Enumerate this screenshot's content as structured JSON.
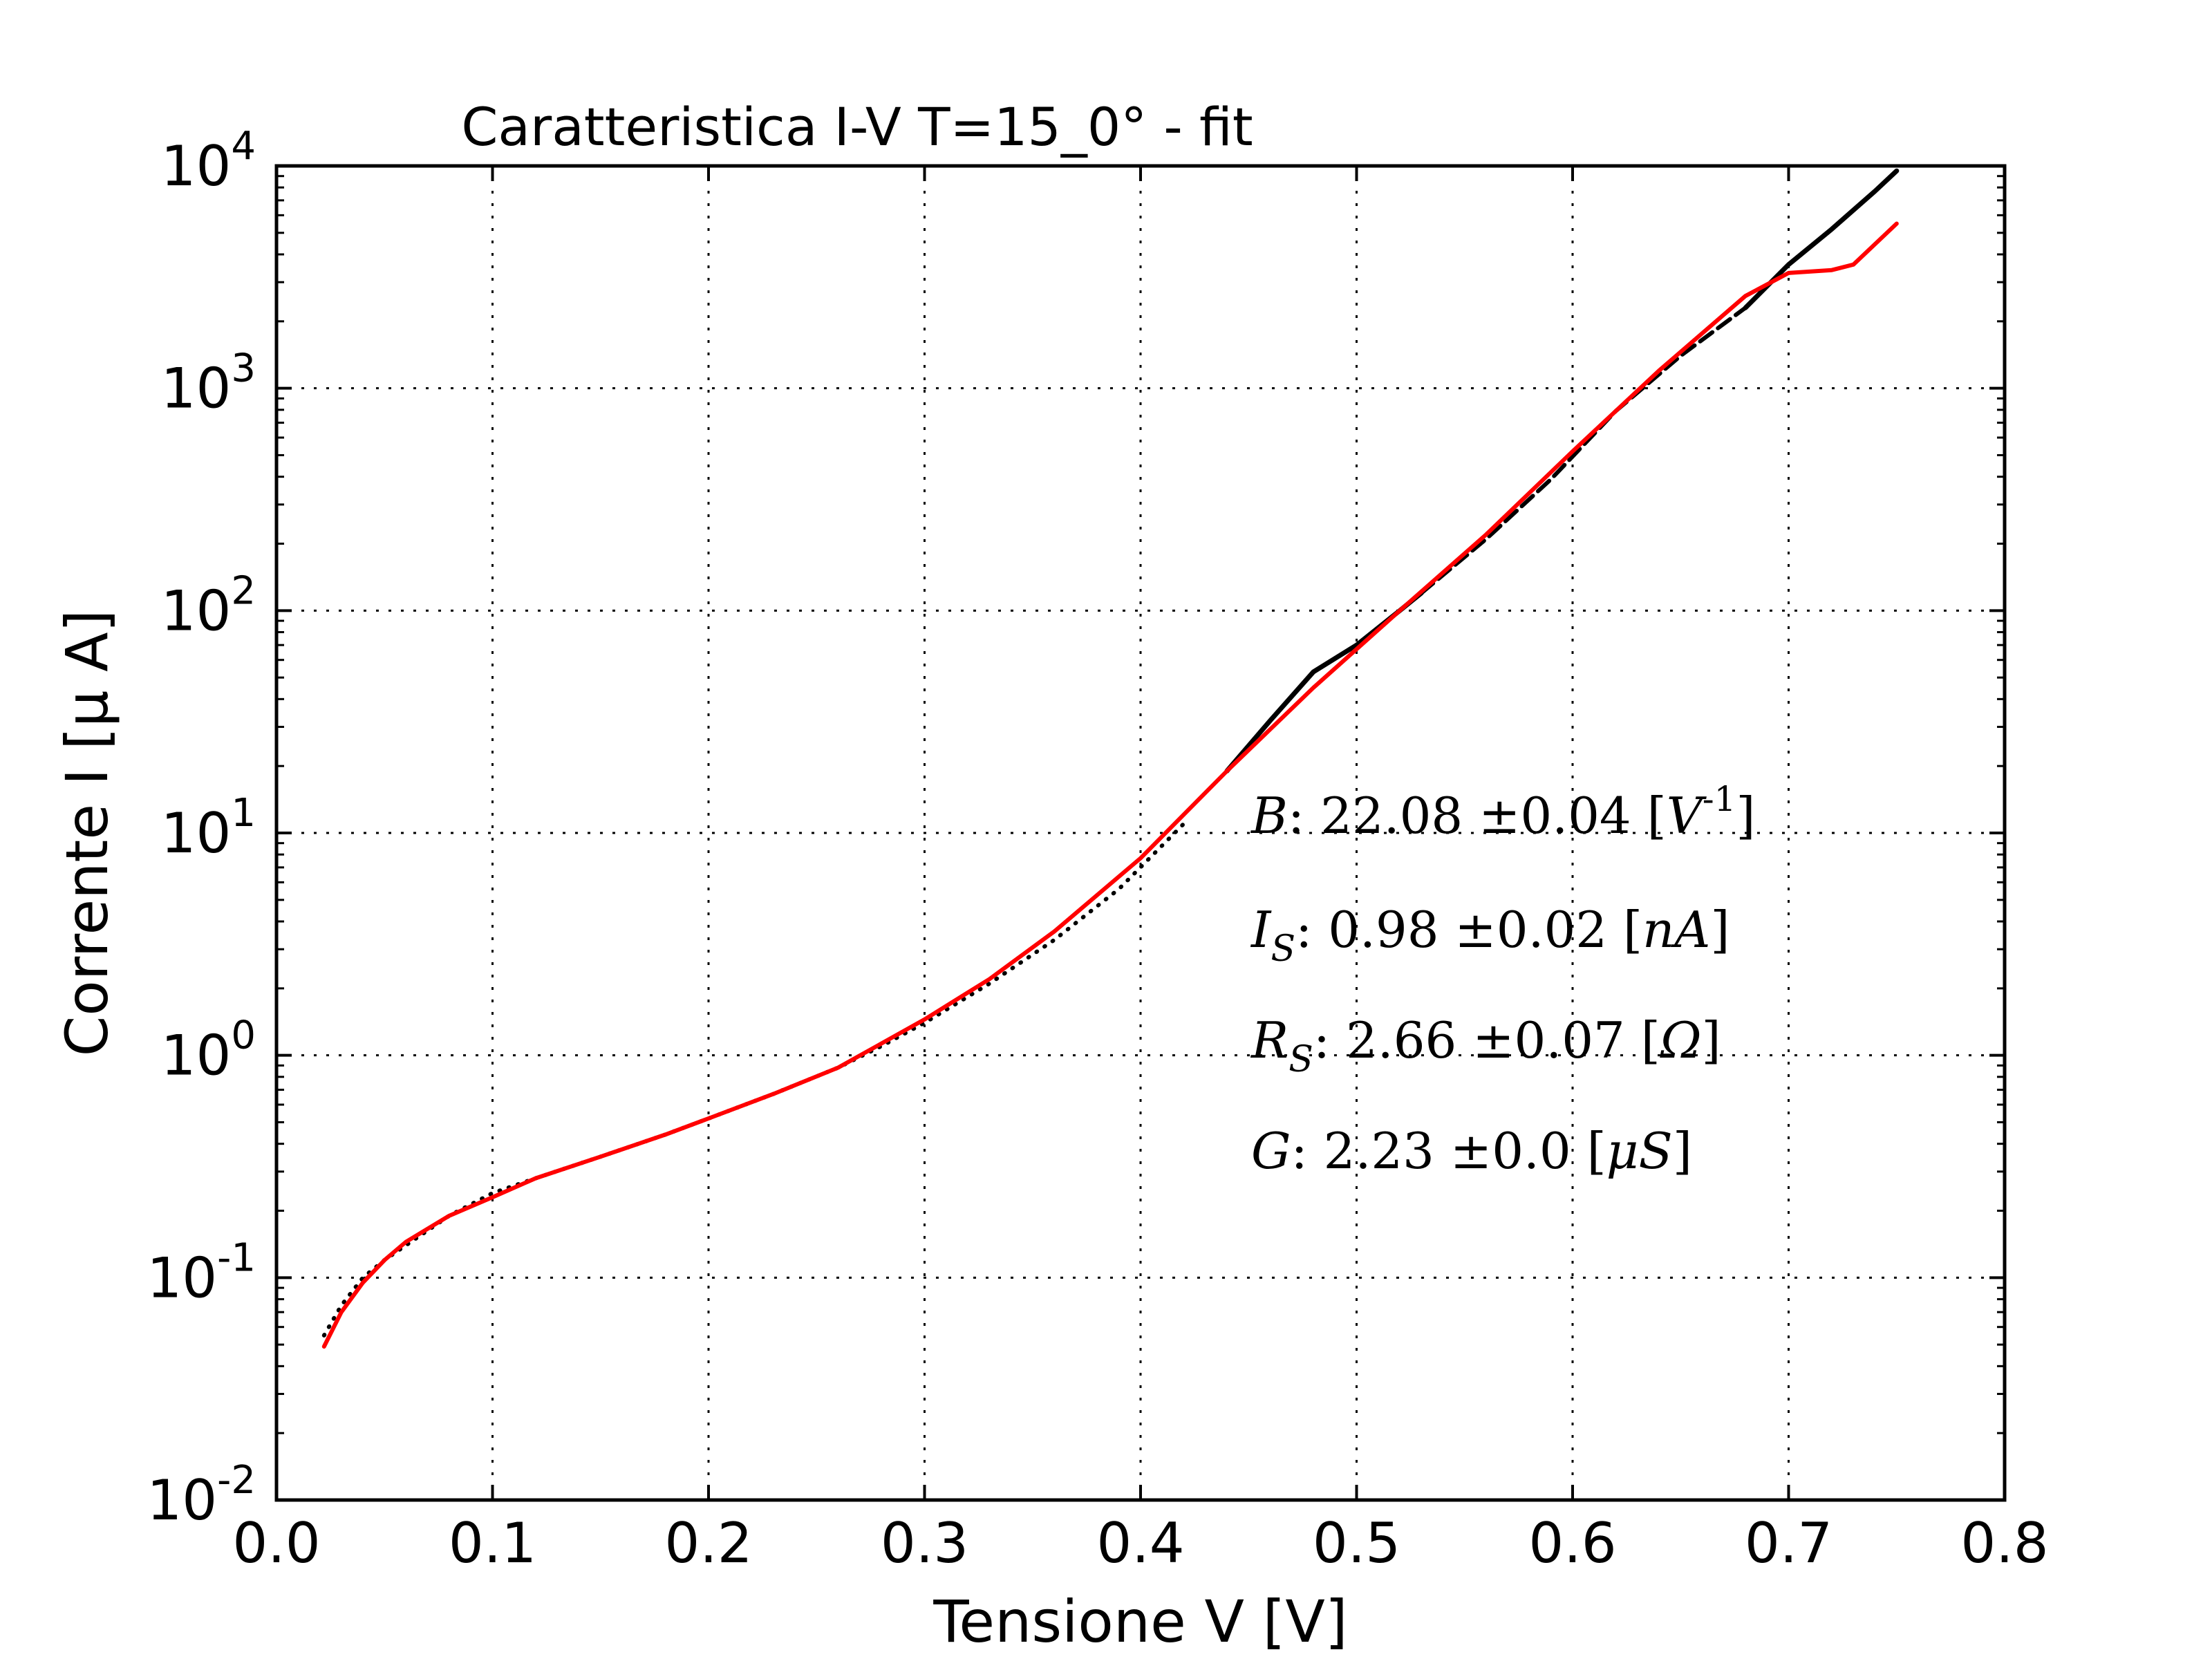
{
  "chart_data": {
    "type": "line",
    "title": "Caratteristica I-V T=15_0° - fit",
    "xlabel": "Tensione V [V]",
    "ylabel": "Corrente I [μ A]",
    "xlim": [
      0.0,
      0.8
    ],
    "ylim": [
      0.01,
      10000
    ],
    "yscale": "log",
    "grid": true,
    "x_ticks": [
      "0.0",
      "0.1",
      "0.2",
      "0.3",
      "0.4",
      "0.5",
      "0.6",
      "0.7",
      "0.8"
    ],
    "y_ticks": [
      {
        "base": "10",
        "exp": "-2"
      },
      {
        "base": "10",
        "exp": "-1"
      },
      {
        "base": "10",
        "exp": "0"
      },
      {
        "base": "10",
        "exp": "1"
      },
      {
        "base": "10",
        "exp": "2"
      },
      {
        "base": "10",
        "exp": "3"
      },
      {
        "base": "10",
        "exp": "4"
      }
    ],
    "series": [
      {
        "style": "dotted",
        "color": "#000000",
        "x": [
          0.022,
          0.03,
          0.04,
          0.05,
          0.06,
          0.08,
          0.1,
          0.12,
          0.15,
          0.18,
          0.2,
          0.23,
          0.26,
          0.28,
          0.3,
          0.33,
          0.36,
          0.39,
          0.42
        ],
        "y": [
          0.055,
          0.075,
          0.1,
          0.12,
          0.14,
          0.19,
          0.24,
          0.28,
          0.35,
          0.44,
          0.52,
          0.67,
          0.88,
          1.1,
          1.4,
          2.1,
          3.3,
          5.6,
          11.0
        ]
      },
      {
        "style": "solid",
        "color": "#000000",
        "x": [
          0.44,
          0.46,
          0.48,
          0.5,
          0.52,
          0.53
        ],
        "y": [
          19,
          32,
          53,
          70,
          100,
          120
        ]
      },
      {
        "style": "dashed",
        "color": "#000000",
        "x": [
          0.53,
          0.56,
          0.59,
          0.62,
          0.65,
          0.68
        ],
        "y": [
          120,
          210,
          390,
          790,
          1400,
          2300
        ]
      },
      {
        "style": "solid",
        "color": "#000000",
        "x": [
          0.68,
          0.7,
          0.72,
          0.74,
          0.75
        ],
        "y": [
          2300,
          3600,
          5200,
          7700,
          9500
        ]
      },
      {
        "style": "solid",
        "color": "#ff0000",
        "x": [
          0.022,
          0.03,
          0.04,
          0.05,
          0.06,
          0.08,
          0.1,
          0.12,
          0.15,
          0.18,
          0.2,
          0.23,
          0.26,
          0.3,
          0.33,
          0.36,
          0.4,
          0.44,
          0.48,
          0.52,
          0.56,
          0.6,
          0.64,
          0.68,
          0.7,
          0.72,
          0.73,
          0.75
        ],
        "y": [
          0.049,
          0.07,
          0.095,
          0.12,
          0.145,
          0.19,
          0.23,
          0.28,
          0.35,
          0.44,
          0.52,
          0.67,
          0.88,
          1.45,
          2.2,
          3.6,
          7.7,
          19,
          45,
          100,
          220,
          520,
          1200,
          2600,
          3300,
          3400,
          3600,
          5500
        ]
      }
    ],
    "annotations": [
      {
        "name": "B",
        "value": "22.08",
        "err": "0.04",
        "unit_pre": "[",
        "unit_sym": "V",
        "unit_sup": "-1",
        "unit_post": "]"
      },
      {
        "name": "I",
        "sub": "S",
        "value": "0.98",
        "err": "0.02",
        "unit_pre": "[",
        "unit_sym": "nA",
        "unit_sup": "",
        "unit_post": "]"
      },
      {
        "name": "R",
        "sub": "S",
        "value": "2.66",
        "err": "0.07",
        "unit_pre": "[",
        "unit_sym": "Ω",
        "unit_sup": "",
        "unit_post": "]"
      },
      {
        "name": "G",
        "value": "2.23",
        "err": "0.0",
        "unit_pre": "[",
        "unit_sym": "μS",
        "unit_sup": "",
        "unit_post": "]"
      }
    ]
  }
}
